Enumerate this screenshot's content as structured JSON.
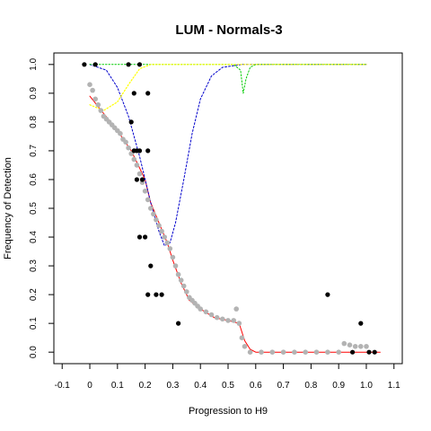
{
  "chart_data": {
    "type": "scatter",
    "title": "LUM - Normals-3",
    "xlabel": "Progression to H9",
    "ylabel": "Frequency of Detection",
    "xlim": [
      -0.13,
      1.13
    ],
    "ylim": [
      -0.04,
      1.04
    ],
    "xticks": [
      "-0.1",
      "0",
      "0.1",
      "0.2",
      "0.3",
      "0.4",
      "0.5",
      "0.6",
      "0.7",
      "0.8",
      "0.9",
      "1.0",
      "1.1"
    ],
    "yticks": [
      "0.0",
      "0.1",
      "0.2",
      "0.3",
      "0.4",
      "0.5",
      "0.6",
      "0.7",
      "0.8",
      "0.9",
      "1.0"
    ],
    "grid": false,
    "legend": "none",
    "colors": {
      "points": "#000000",
      "smoothed_points": "#b3b3b3",
      "fit": "#ff0000",
      "blue_curve": "#0000cc",
      "green_curve": "#00cc00",
      "yellow_curve": "#ffff00"
    },
    "series": [
      {
        "style": "black-points",
        "points": [
          [
            -0.02,
            1.0
          ],
          [
            0.02,
            1.0
          ],
          [
            0.14,
            1.0
          ],
          [
            0.18,
            1.0
          ],
          [
            0.15,
            0.8
          ],
          [
            0.16,
            0.9
          ],
          [
            0.21,
            0.9
          ],
          [
            0.16,
            0.7
          ],
          [
            0.17,
            0.7
          ],
          [
            0.18,
            0.7
          ],
          [
            0.21,
            0.7
          ],
          [
            0.17,
            0.6
          ],
          [
            0.19,
            0.6
          ],
          [
            0.18,
            0.4
          ],
          [
            0.2,
            0.4
          ],
          [
            0.22,
            0.3
          ],
          [
            0.21,
            0.2
          ],
          [
            0.24,
            0.2
          ],
          [
            0.26,
            0.2
          ],
          [
            0.32,
            0.1
          ],
          [
            0.86,
            0.2
          ],
          [
            0.98,
            0.1
          ],
          [
            0.95,
            0.0
          ],
          [
            1.01,
            0.0
          ],
          [
            1.03,
            0.0
          ]
        ]
      },
      {
        "style": "grey-points",
        "points": [
          [
            0.0,
            0.93
          ],
          [
            0.01,
            0.91
          ],
          [
            0.02,
            0.88
          ],
          [
            0.03,
            0.86
          ],
          [
            0.04,
            0.84
          ],
          [
            0.05,
            0.82
          ],
          [
            0.06,
            0.81
          ],
          [
            0.07,
            0.8
          ],
          [
            0.08,
            0.79
          ],
          [
            0.09,
            0.78
          ],
          [
            0.1,
            0.77
          ],
          [
            0.11,
            0.76
          ],
          [
            0.12,
            0.74
          ],
          [
            0.13,
            0.73
          ],
          [
            0.14,
            0.71
          ],
          [
            0.15,
            0.69
          ],
          [
            0.16,
            0.67
          ],
          [
            0.17,
            0.65
          ],
          [
            0.18,
            0.62
          ],
          [
            0.19,
            0.59
          ],
          [
            0.2,
            0.56
          ],
          [
            0.21,
            0.53
          ],
          [
            0.22,
            0.5
          ],
          [
            0.23,
            0.48
          ],
          [
            0.24,
            0.46
          ],
          [
            0.25,
            0.44
          ],
          [
            0.26,
            0.42
          ],
          [
            0.27,
            0.4
          ],
          [
            0.28,
            0.38
          ],
          [
            0.29,
            0.36
          ],
          [
            0.3,
            0.33
          ],
          [
            0.31,
            0.3
          ],
          [
            0.32,
            0.27
          ],
          [
            0.33,
            0.25
          ],
          [
            0.34,
            0.23
          ],
          [
            0.35,
            0.21
          ],
          [
            0.36,
            0.19
          ],
          [
            0.37,
            0.18
          ],
          [
            0.38,
            0.17
          ],
          [
            0.39,
            0.16
          ],
          [
            0.4,
            0.15
          ],
          [
            0.42,
            0.14
          ],
          [
            0.44,
            0.13
          ],
          [
            0.46,
            0.12
          ],
          [
            0.48,
            0.115
          ],
          [
            0.5,
            0.11
          ],
          [
            0.52,
            0.11
          ],
          [
            0.53,
            0.15
          ],
          [
            0.54,
            0.1
          ],
          [
            0.55,
            0.05
          ],
          [
            0.56,
            0.02
          ],
          [
            0.58,
            0.0
          ],
          [
            0.62,
            0.0
          ],
          [
            0.66,
            0.0
          ],
          [
            0.7,
            0.0
          ],
          [
            0.74,
            0.0
          ],
          [
            0.78,
            0.0
          ],
          [
            0.82,
            0.0
          ],
          [
            0.86,
            0.0
          ],
          [
            0.9,
            0.0
          ],
          [
            0.92,
            0.03
          ],
          [
            0.94,
            0.025
          ],
          [
            0.96,
            0.02
          ],
          [
            0.98,
            0.02
          ],
          [
            1.0,
            0.02
          ]
        ]
      },
      {
        "style": "red-fit",
        "points": [
          [
            0.0,
            0.89
          ],
          [
            0.05,
            0.83
          ],
          [
            0.1,
            0.77
          ],
          [
            0.15,
            0.7
          ],
          [
            0.18,
            0.64
          ],
          [
            0.2,
            0.6
          ],
          [
            0.22,
            0.52
          ],
          [
            0.25,
            0.45
          ],
          [
            0.28,
            0.38
          ],
          [
            0.3,
            0.32
          ],
          [
            0.33,
            0.24
          ],
          [
            0.36,
            0.18
          ],
          [
            0.4,
            0.15
          ],
          [
            0.45,
            0.12
          ],
          [
            0.5,
            0.11
          ],
          [
            0.54,
            0.1
          ],
          [
            0.56,
            0.04
          ],
          [
            0.58,
            0.01
          ],
          [
            0.6,
            0.0
          ],
          [
            1.05,
            0.0
          ]
        ]
      },
      {
        "style": "blue-dotted",
        "points": [
          [
            0.0,
            1.0
          ],
          [
            0.06,
            0.98
          ],
          [
            0.1,
            0.92
          ],
          [
            0.14,
            0.82
          ],
          [
            0.18,
            0.68
          ],
          [
            0.22,
            0.52
          ],
          [
            0.25,
            0.42
          ],
          [
            0.27,
            0.37
          ],
          [
            0.29,
            0.38
          ],
          [
            0.31,
            0.45
          ],
          [
            0.34,
            0.6
          ],
          [
            0.37,
            0.76
          ],
          [
            0.4,
            0.88
          ],
          [
            0.44,
            0.96
          ],
          [
            0.48,
            0.99
          ],
          [
            0.55,
            1.0
          ],
          [
            1.0,
            1.0
          ]
        ]
      },
      {
        "style": "green-dotted",
        "points": [
          [
            0.0,
            1.0
          ],
          [
            0.52,
            1.0
          ],
          [
            0.545,
            0.98
          ],
          [
            0.555,
            0.9
          ],
          [
            0.565,
            0.95
          ],
          [
            0.58,
            0.99
          ],
          [
            0.6,
            1.0
          ],
          [
            1.0,
            1.0
          ]
        ]
      },
      {
        "style": "yellow-dotted",
        "points": [
          [
            0.0,
            0.86
          ],
          [
            0.05,
            0.84
          ],
          [
            0.1,
            0.87
          ],
          [
            0.14,
            0.93
          ],
          [
            0.18,
            0.985
          ],
          [
            0.22,
            1.0
          ],
          [
            0.45,
            1.0
          ],
          [
            0.6,
            1.0
          ],
          [
            1.0,
            1.0
          ]
        ]
      }
    ]
  }
}
